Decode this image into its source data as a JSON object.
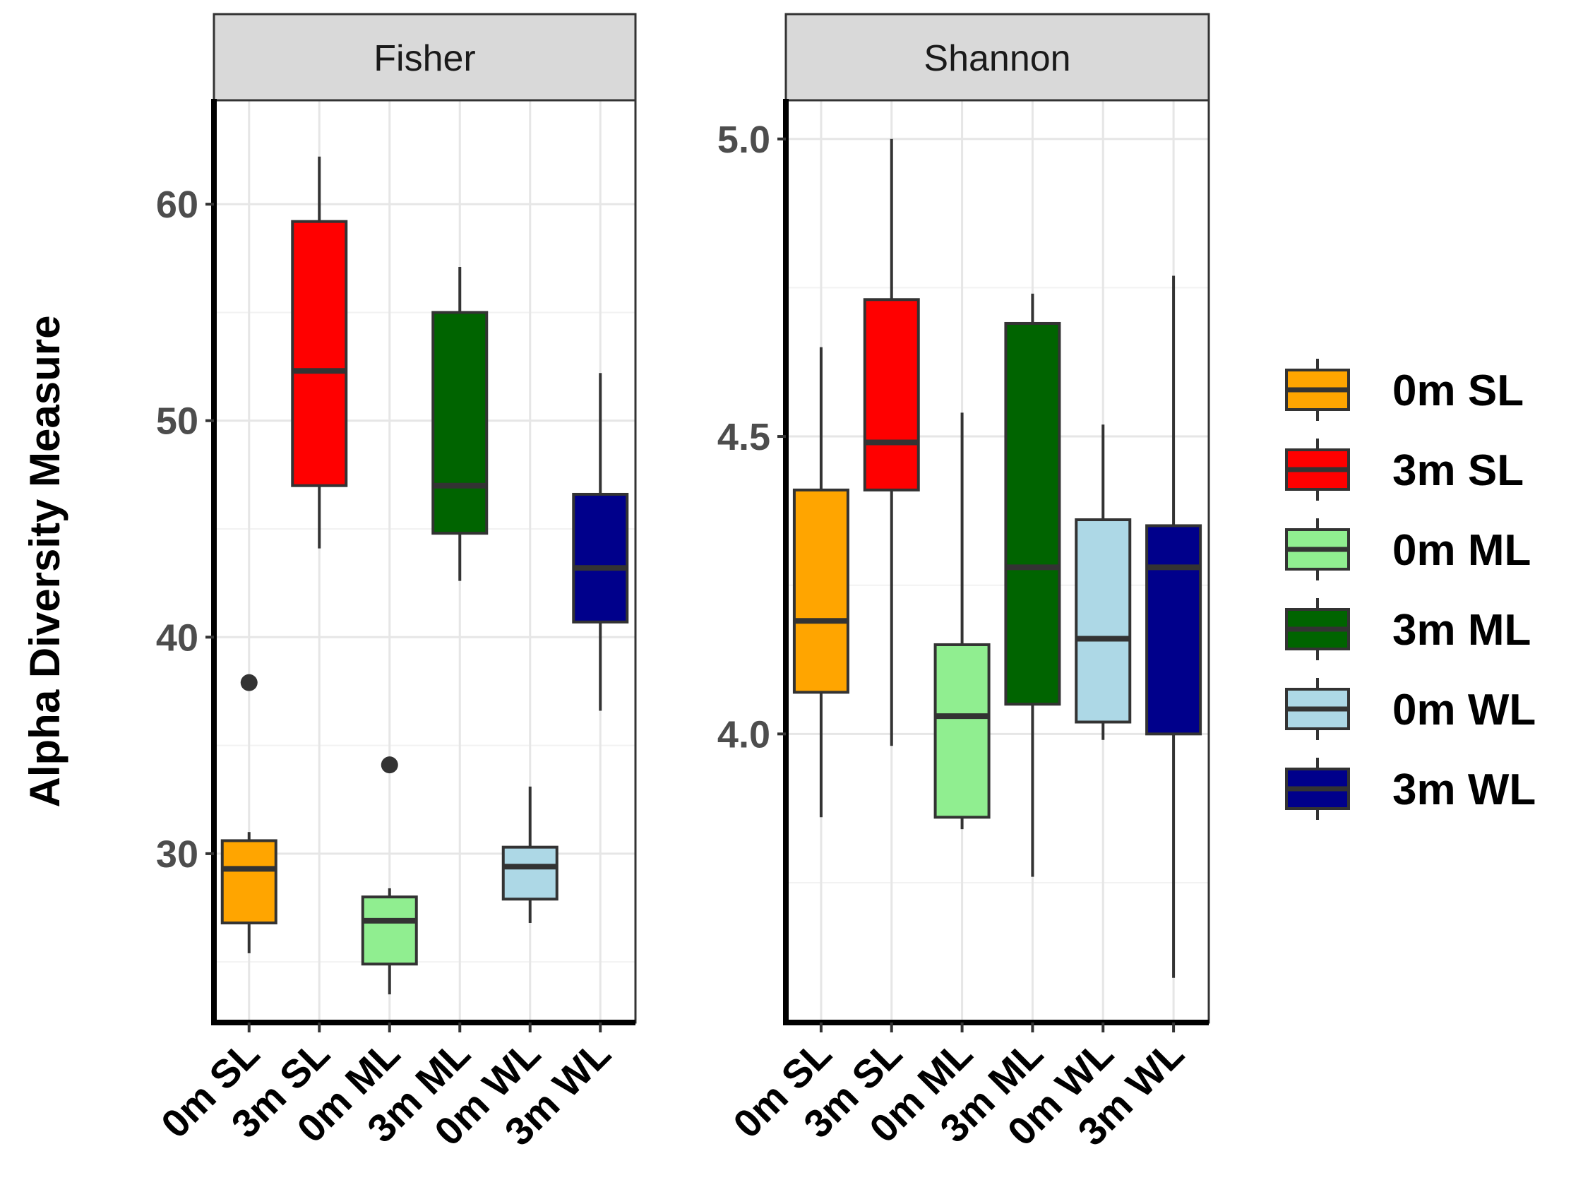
{
  "chart_data": {
    "type": "box",
    "ylabel": "Alpha Diversity Measure",
    "categories": [
      "0m SL",
      "3m SL",
      "0m ML",
      "3m ML",
      "0m WL",
      "3m WL"
    ],
    "colors": [
      "#FFA500",
      "#FF0000",
      "#90EE90",
      "#006400",
      "#ADD8E6",
      "#00008B"
    ],
    "legend": {
      "position": "right",
      "entries": [
        "0m SL",
        "3m SL",
        "0m ML",
        "3m ML",
        "0m WL",
        "3m WL"
      ]
    },
    "grid": true,
    "panels": [
      {
        "title": "Fisher",
        "ylim": [
          22.2,
          64.8
        ],
        "yticks": [
          30,
          40,
          50,
          60
        ],
        "yticklabels": [
          "30",
          "40",
          "50",
          "60"
        ],
        "boxes": [
          {
            "category": "0m SL",
            "whisker_low": 25.4,
            "q1": 26.8,
            "median": 29.3,
            "q3": 30.6,
            "whisker_high": 31.0,
            "outliers": [
              37.9
            ]
          },
          {
            "category": "3m SL",
            "whisker_low": 44.1,
            "q1": 47.0,
            "median": 52.3,
            "q3": 59.2,
            "whisker_high": 62.2,
            "outliers": []
          },
          {
            "category": "0m ML",
            "whisker_low": 23.5,
            "q1": 24.9,
            "median": 26.9,
            "q3": 28.0,
            "whisker_high": 28.4,
            "outliers": [
              34.1
            ]
          },
          {
            "category": "3m ML",
            "whisker_low": 42.6,
            "q1": 44.8,
            "median": 47.0,
            "q3": 55.0,
            "whisker_high": 57.1,
            "outliers": []
          },
          {
            "category": "0m WL",
            "whisker_low": 26.8,
            "q1": 27.9,
            "median": 29.4,
            "q3": 30.3,
            "whisker_high": 33.1,
            "outliers": []
          },
          {
            "category": "3m WL",
            "whisker_low": 36.6,
            "q1": 40.7,
            "median": 43.2,
            "q3": 46.6,
            "whisker_high": 52.2,
            "outliers": []
          }
        ]
      },
      {
        "title": "Shannon",
        "ylim": [
          3.515,
          5.065
        ],
        "yticks": [
          4.0,
          4.5,
          5.0
        ],
        "yticklabels": [
          "4.0",
          "4.5",
          "5.0"
        ],
        "boxes": [
          {
            "category": "0m SL",
            "whisker_low": 3.86,
            "q1": 4.07,
            "median": 4.19,
            "q3": 4.41,
            "whisker_high": 4.65,
            "outliers": []
          },
          {
            "category": "3m SL",
            "whisker_low": 3.98,
            "q1": 4.41,
            "median": 4.49,
            "q3": 4.73,
            "whisker_high": 5.0,
            "outliers": []
          },
          {
            "category": "0m ML",
            "whisker_low": 3.84,
            "q1": 3.86,
            "median": 4.03,
            "q3": 4.15,
            "whisker_high": 4.54,
            "outliers": []
          },
          {
            "category": "3m ML",
            "whisker_low": 3.76,
            "q1": 4.05,
            "median": 4.28,
            "q3": 4.69,
            "whisker_high": 4.74,
            "outliers": []
          },
          {
            "category": "0m WL",
            "whisker_low": 3.99,
            "q1": 4.02,
            "median": 4.16,
            "q3": 4.36,
            "whisker_high": 4.52,
            "outliers": []
          },
          {
            "category": "3m WL",
            "whisker_low": 3.59,
            "q1": 4.0,
            "median": 4.28,
            "q3": 4.35,
            "whisker_high": 4.77,
            "outliers": []
          }
        ]
      }
    ]
  }
}
